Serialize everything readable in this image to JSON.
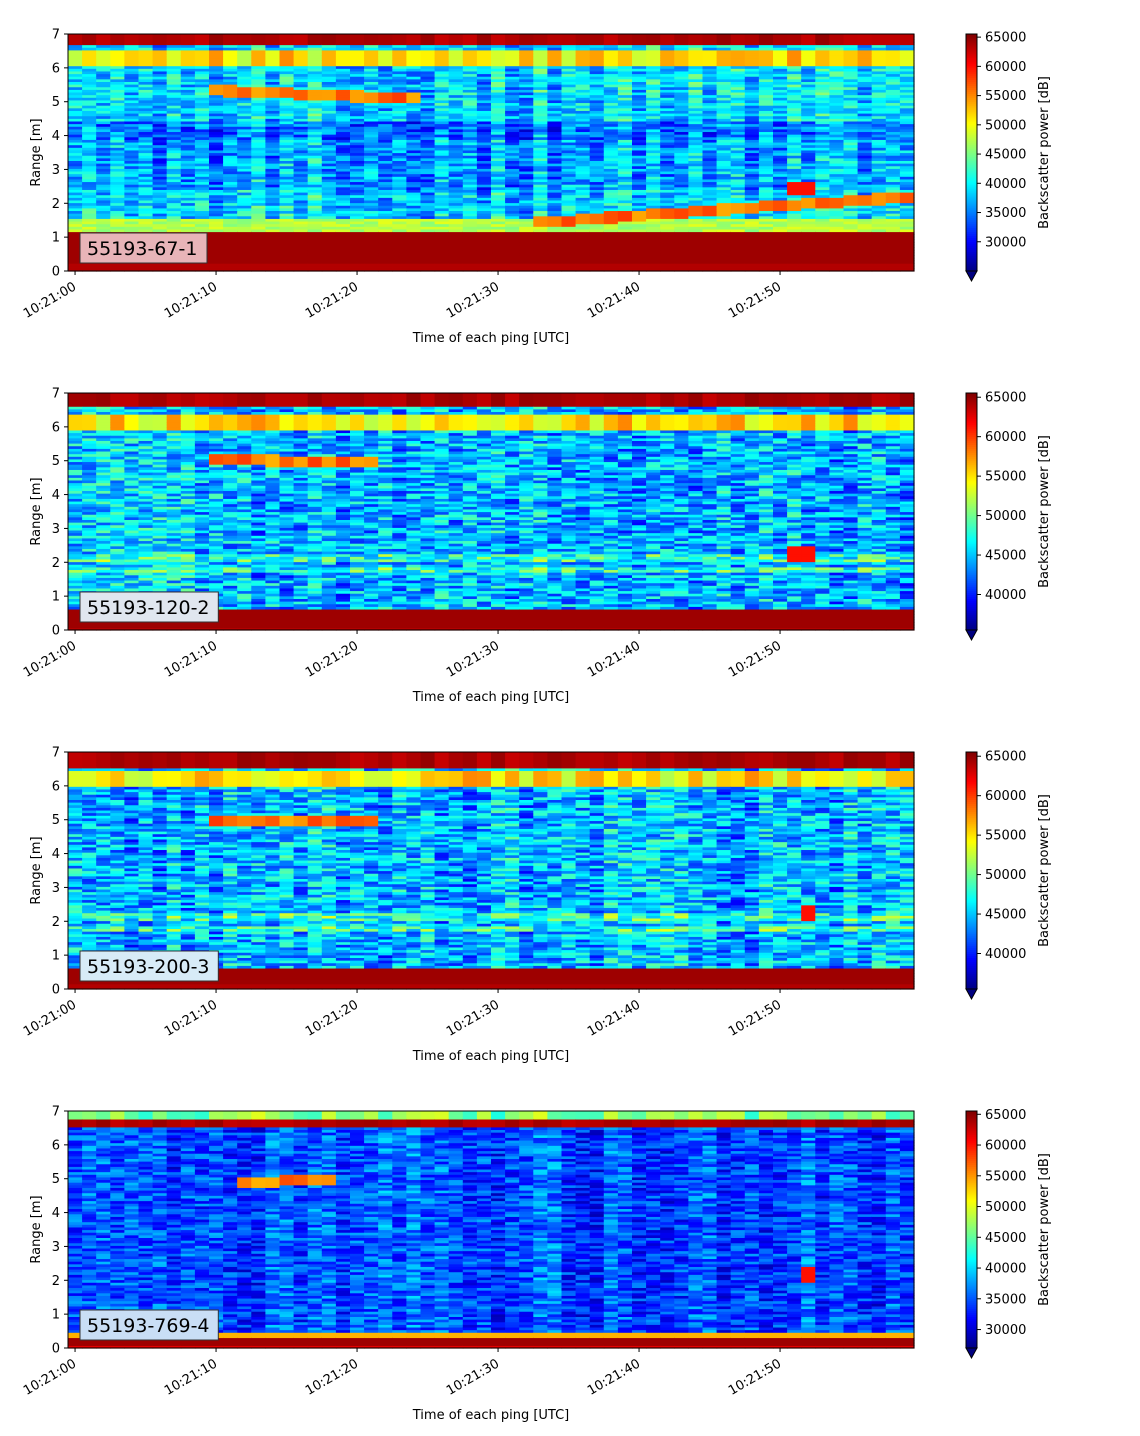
{
  "figure": {
    "xlabel": "Time of each ping [UTC]",
    "ylabel": "Range [m]",
    "colorbar_label": "Backscatter power [dB]"
  },
  "chart_data": [
    {
      "type": "heatmap",
      "label": "55193-67-1",
      "label_box_color": "#e8b4b8",
      "xlabel": "Time of each ping [UTC]",
      "ylabel": "Range [m]",
      "x_ticks": [
        "10:21:00",
        "10:21:10",
        "10:21:20",
        "10:21:30",
        "10:21:40",
        "10:21:50"
      ],
      "x_range_s": [
        -0.5,
        59.5
      ],
      "y_ticks": [
        0,
        1,
        2,
        3,
        4,
        5,
        6,
        7
      ],
      "ylim": [
        0,
        7
      ],
      "colorbar": {
        "label": "Backscatter power [dB]",
        "min": 25000,
        "max": 65535,
        "ticks": [
          30000,
          35000,
          40000,
          45000,
          50000,
          55000,
          60000,
          65000
        ],
        "colormap": "jet",
        "extend": "min"
      },
      "features": {
        "strong_band_bottom": [
          0.2,
          1.2
        ],
        "strong_band_top": [
          6.7,
          7.0
        ],
        "bright_layer_near_top": 6.3,
        "target_track_1": {
          "t_start_s": 10,
          "t_end_s": 24,
          "range_start_m": 5.35,
          "range_end_m": 5.1
        },
        "target_track_2": {
          "t_start_s": 33,
          "t_end_s": 59,
          "range_start_m": 1.45,
          "range_end_m": 2.2
        },
        "hot_spot": {
          "t_s": 51.5,
          "range_m": 2.45
        }
      }
    },
    {
      "type": "heatmap",
      "label": "55193-120-2",
      "label_box_color": "#e0e6ef",
      "xlabel": "Time of each ping [UTC]",
      "ylabel": "Range [m]",
      "x_ticks": [
        "10:21:00",
        "10:21:10",
        "10:21:20",
        "10:21:30",
        "10:21:40",
        "10:21:50"
      ],
      "x_range_s": [
        -0.5,
        59.5
      ],
      "y_ticks": [
        0,
        1,
        2,
        3,
        4,
        5,
        6,
        7
      ],
      "ylim": [
        0,
        7
      ],
      "colorbar": {
        "label": "Backscatter power [dB]",
        "min": 35500,
        "max": 65535,
        "ticks": [
          40000,
          45000,
          50000,
          55000,
          60000,
          65000
        ],
        "colormap": "jet",
        "extend": "min"
      },
      "features": {
        "strong_band_bottom": [
          0.1,
          0.6
        ],
        "strong_band_top": [
          6.6,
          7.0
        ],
        "bright_layer_near_top": 6.15,
        "target_track_1": {
          "t_start_s": 10,
          "t_end_s": 21,
          "range_start_m": 5.05,
          "range_end_m": 4.95
        },
        "hot_spot": {
          "t_s": 51.5,
          "range_m": 2.25
        }
      }
    },
    {
      "type": "heatmap",
      "label": "55193-200-3",
      "label_box_color": "#d7ebf7",
      "xlabel": "Time of each ping [UTC]",
      "ylabel": "Range [m]",
      "x_ticks": [
        "10:21:00",
        "10:21:10",
        "10:21:20",
        "10:21:30",
        "10:21:40",
        "10:21:50"
      ],
      "x_range_s": [
        -0.5,
        59.5
      ],
      "y_ticks": [
        0,
        1,
        2,
        3,
        4,
        5,
        6,
        7
      ],
      "ylim": [
        0,
        7
      ],
      "colorbar": {
        "label": "Backscatter power [dB]",
        "min": 35500,
        "max": 65535,
        "ticks": [
          40000,
          45000,
          50000,
          55000,
          60000,
          65000
        ],
        "colormap": "jet",
        "extend": "min"
      },
      "features": {
        "strong_band_bottom": [
          0.15,
          0.6
        ],
        "strong_band_top": [
          6.55,
          7.0
        ],
        "bright_layer_near_top": 6.2,
        "target_track_1": {
          "t_start_s": 10,
          "t_end_s": 21,
          "range_start_m": 5.0,
          "range_end_m": 4.95
        },
        "hot_spot": {
          "t_s": 52,
          "range_m": 2.25
        }
      }
    },
    {
      "type": "heatmap",
      "label": "55193-769-4",
      "label_box_color": "#c9def5",
      "xlabel": "Time of each ping [UTC]",
      "ylabel": "Range [m]",
      "x_ticks": [
        "10:21:00",
        "10:21:10",
        "10:21:20",
        "10:21:30",
        "10:21:40",
        "10:21:50"
      ],
      "x_range_s": [
        -0.5,
        59.5
      ],
      "y_ticks": [
        0,
        1,
        2,
        3,
        4,
        5,
        6,
        7
      ],
      "ylim": [
        0,
        7
      ],
      "colorbar": {
        "label": "Backscatter power [dB]",
        "min": 27000,
        "max": 65535,
        "ticks": [
          30000,
          35000,
          40000,
          45000,
          50000,
          55000,
          60000,
          65000
        ],
        "colormap": "jet",
        "extend": "min"
      },
      "features": {
        "strong_band_bottom": [
          0.1,
          0.35
        ],
        "strong_band_top": [
          6.55,
          6.75
        ],
        "bright_layer_near_top": 6.85,
        "target_track_1": {
          "t_start_s": 12,
          "t_end_s": 18,
          "range_start_m": 4.9,
          "range_end_m": 5.0
        },
        "hot_spot": {
          "t_s": 52,
          "range_m": 2.2
        }
      }
    }
  ]
}
